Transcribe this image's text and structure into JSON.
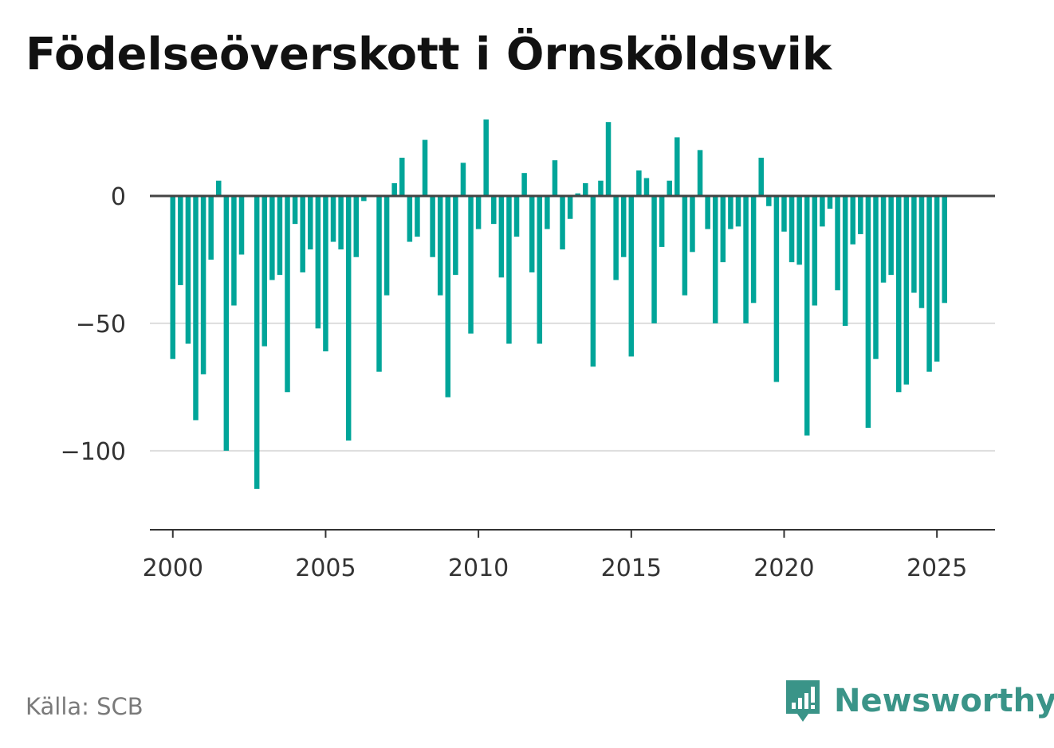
{
  "title": "Födelseöverskott i Örnsköldsvik",
  "source": "Källa: SCB",
  "brand": {
    "name": "Newsworthy",
    "icon": "bar-chart-speech-bubble-icon",
    "color": "#3a9488"
  },
  "colors": {
    "bar": "#00a599",
    "zero_line": "#444444",
    "grid": "#dddddd",
    "axis": "#333333"
  },
  "chart_data": {
    "type": "bar",
    "title": "Födelseöverskott i Örnsköldsvik",
    "xlabel": "",
    "ylabel": "",
    "x_start": 2000,
    "x_step_per_bar": 0.25,
    "xlim": [
      1999.25,
      2026.9
    ],
    "ylim": [
      -131,
      30
    ],
    "y_ticks": [
      0,
      -50,
      -100
    ],
    "y_tick_labels": [
      "0",
      "−50",
      "−100"
    ],
    "x_ticks": [
      2000,
      2005,
      2010,
      2015,
      2020,
      2025
    ],
    "x_tick_labels": [
      "2000",
      "2005",
      "2010",
      "2015",
      "2020",
      "2025"
    ],
    "grid": true,
    "values": [
      -64,
      -35,
      -58,
      -88,
      -70,
      -25,
      6,
      -100,
      -43,
      -23,
      0,
      -115,
      -59,
      -33,
      -31,
      -77,
      -11,
      -30,
      -21,
      -52,
      -61,
      -18,
      -21,
      -96,
      -24,
      -2,
      0,
      -69,
      -39,
      5,
      15,
      -18,
      -16,
      22,
      -24,
      -39,
      -79,
      -31,
      13,
      -54,
      -13,
      30,
      -11,
      -32,
      -58,
      -16,
      9,
      -30,
      -58,
      -13,
      14,
      -21,
      -9,
      1,
      5,
      -67,
      6,
      29,
      -33,
      -24,
      -63,
      10,
      7,
      -50,
      -20,
      6,
      23,
      -39,
      -22,
      18,
      -13,
      -50,
      -26,
      -13,
      -12,
      -50,
      -42,
      15,
      -4,
      -73,
      -14,
      -26,
      -27,
      -94,
      -43,
      -12,
      -5,
      -37,
      -51,
      -19,
      -15,
      -91,
      -64,
      -34,
      -31,
      -77,
      -74,
      -38,
      -44,
      -69,
      -65,
      -42
    ]
  }
}
